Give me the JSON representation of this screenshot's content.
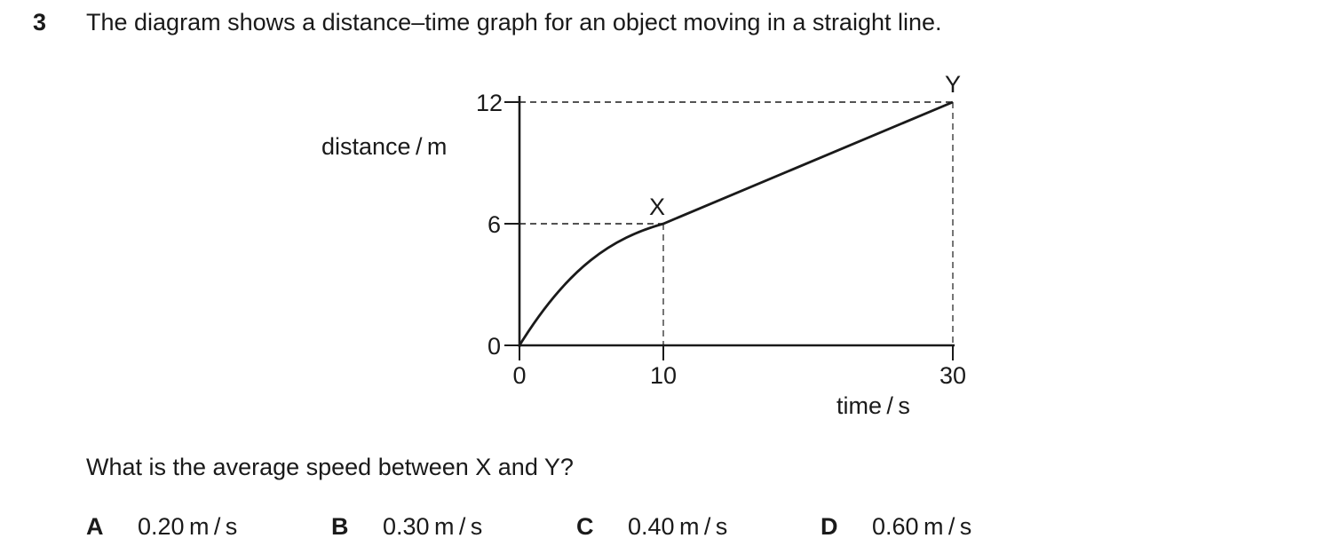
{
  "question": {
    "number": "3",
    "stem": "The diagram shows a distance–time graph for an object moving in a straight line.",
    "prompt": "What is the average speed between X and Y?",
    "options": [
      {
        "letter": "A",
        "text": "0.20 m / s"
      },
      {
        "letter": "B",
        "text": "0.30 m / s"
      },
      {
        "letter": "C",
        "text": "0.40 m / s"
      },
      {
        "letter": "D",
        "text": "0.60 m / s"
      }
    ]
  },
  "graph": {
    "y_axis_label": "distance / m",
    "x_axis_label": "time / s",
    "y_ticks": [
      "0",
      "6",
      "12"
    ],
    "x_ticks": [
      "0",
      "10",
      "30"
    ],
    "xlim": [
      0,
      30
    ],
    "ylim": [
      0,
      12
    ],
    "points": [
      {
        "label": "X",
        "x": 10,
        "y": 6
      },
      {
        "label": "Y",
        "x": 30,
        "y": 12
      }
    ],
    "curve_segment": "increasing, decreasing slope from (0,0) to X",
    "line_segment": "straight from X to Y"
  }
}
